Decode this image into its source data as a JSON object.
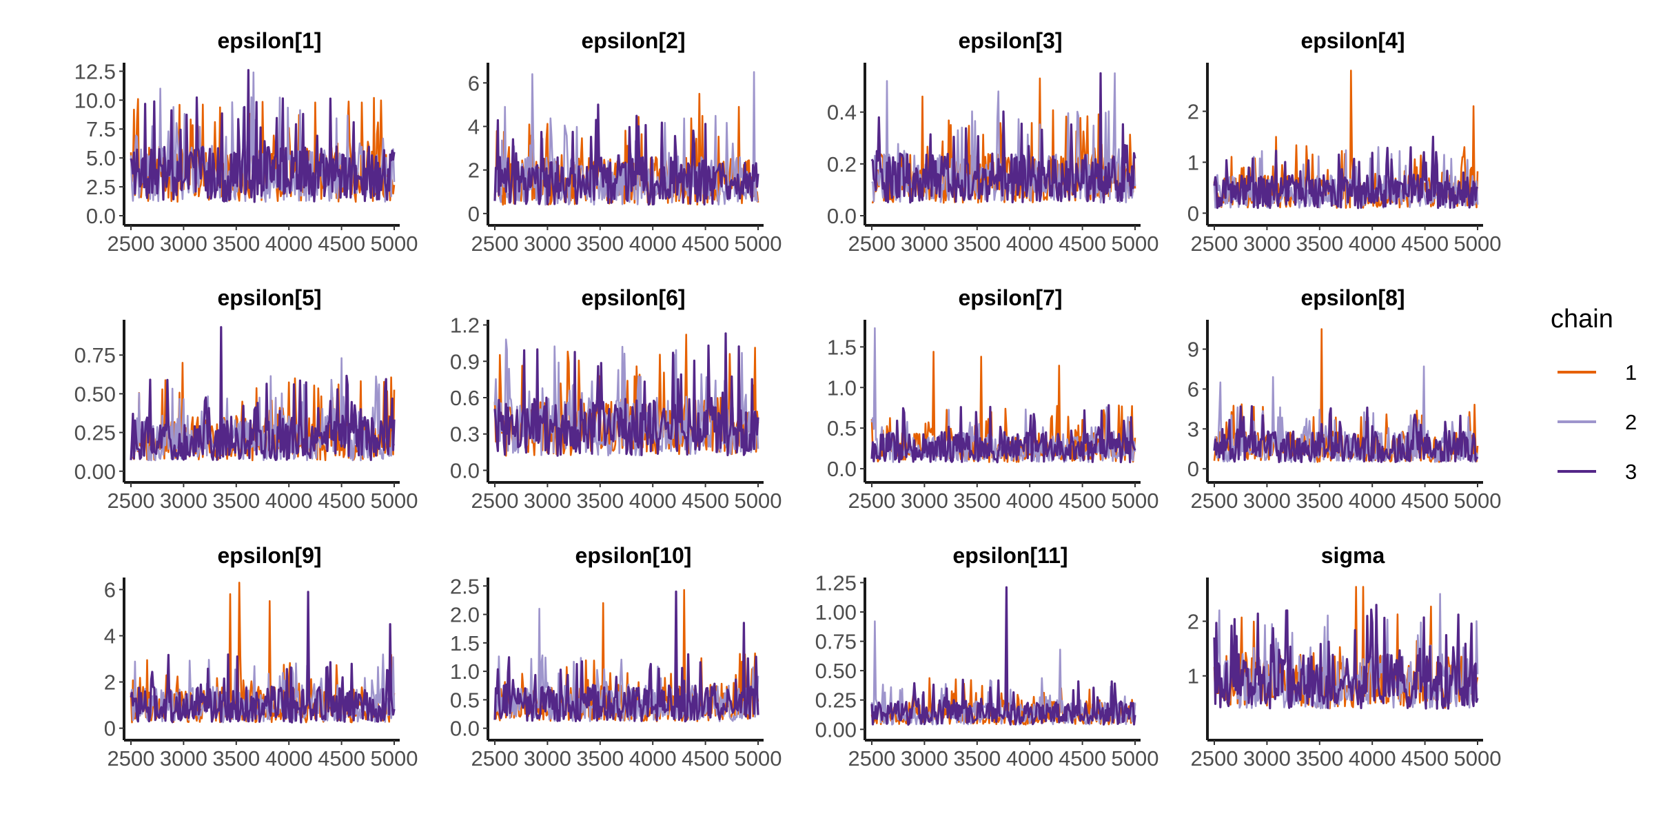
{
  "legend": {
    "title": "chain",
    "items": [
      {
        "label": "1",
        "color": "#E66101"
      },
      {
        "label": "2",
        "color": "#9E95CC"
      },
      {
        "label": "3",
        "color": "#542788"
      }
    ]
  },
  "chart_data": [
    {
      "type": "line",
      "title": "epsilon[1]",
      "xlabel": "",
      "ylabel": "",
      "xlim": [
        2500,
        5000
      ],
      "ylim": [
        0,
        13
      ],
      "x_ticks": [
        "2500",
        "3000",
        "3500",
        "4000",
        "4500",
        "5000"
      ],
      "y_ticks": [
        "0.0",
        "2.5",
        "5.0",
        "7.5",
        "10.0",
        "12.5"
      ],
      "series_summary": {
        "typical": 3.7,
        "low": 1.2,
        "high": 6.0,
        "spike_max": 12.6,
        "spikes": [
          [
            2780,
            11.0,
            "2"
          ],
          [
            2960,
            9.6,
            "1"
          ],
          [
            3620,
            12.6,
            "3"
          ],
          [
            3660,
            12.4,
            "2"
          ],
          [
            4250,
            9.8,
            "1"
          ],
          [
            4690,
            9.8,
            "1"
          ]
        ]
      }
    },
    {
      "type": "line",
      "title": "epsilon[2]",
      "xlabel": "",
      "ylabel": "",
      "xlim": [
        2500,
        5000
      ],
      "ylim": [
        -0.1,
        6.8
      ],
      "x_ticks": [
        "2500",
        "3000",
        "3500",
        "4000",
        "4500",
        "5000"
      ],
      "y_ticks": [
        "0",
        "2",
        "4",
        "6"
      ],
      "series_summary": {
        "typical": 1.5,
        "low": 0.4,
        "high": 2.6,
        "spike_max": 6.5,
        "spikes": [
          [
            2600,
            4.9,
            "2"
          ],
          [
            2860,
            6.4,
            "2"
          ],
          [
            3480,
            5.0,
            "3"
          ],
          [
            4440,
            5.5,
            "1"
          ],
          [
            4820,
            4.9,
            "1"
          ],
          [
            4960,
            6.5,
            "2"
          ]
        ]
      }
    },
    {
      "type": "line",
      "title": "epsilon[3]",
      "xlabel": "",
      "ylabel": "",
      "xlim": [
        2500,
        5000
      ],
      "ylim": [
        0,
        0.58
      ],
      "x_ticks": [
        "2500",
        "3000",
        "3500",
        "4000",
        "4500",
        "5000"
      ],
      "y_ticks": [
        "0.0",
        "0.2",
        "0.4"
      ],
      "series_summary": {
        "typical": 0.14,
        "low": 0.05,
        "high": 0.24,
        "spike_max": 0.55,
        "spikes": [
          [
            2640,
            0.52,
            "2"
          ],
          [
            2980,
            0.46,
            "1"
          ],
          [
            3700,
            0.48,
            "2"
          ],
          [
            4100,
            0.53,
            "1"
          ],
          [
            4670,
            0.55,
            "3"
          ],
          [
            4810,
            0.55,
            "2"
          ]
        ]
      }
    },
    {
      "type": "line",
      "title": "epsilon[4]",
      "xlabel": "",
      "ylabel": "",
      "xlim": [
        2500,
        5000
      ],
      "ylim": [
        -0.05,
        2.9
      ],
      "x_ticks": [
        "2500",
        "3000",
        "3500",
        "4000",
        "4500",
        "5000"
      ],
      "y_ticks": [
        "0",
        "1",
        "2"
      ],
      "series_summary": {
        "typical": 0.4,
        "low": 0.1,
        "high": 0.75,
        "spike_max": 2.8,
        "spikes": [
          [
            3090,
            1.5,
            "1"
          ],
          [
            3800,
            2.8,
            "1"
          ],
          [
            4580,
            1.5,
            "3"
          ],
          [
            4960,
            2.1,
            "1"
          ]
        ]
      }
    },
    {
      "type": "line",
      "title": "epsilon[5]",
      "xlabel": "",
      "ylabel": "",
      "xlim": [
        2500,
        5000
      ],
      "ylim": [
        -0.01,
        0.96
      ],
      "x_ticks": [
        "2500",
        "3000",
        "3500",
        "4000",
        "4500",
        "5000"
      ],
      "y_ticks": [
        "0.00",
        "0.25",
        "0.50",
        "0.75"
      ],
      "series_summary": {
        "typical": 0.2,
        "low": 0.07,
        "high": 0.36,
        "spike_max": 0.93,
        "spikes": [
          [
            2990,
            0.7,
            "1"
          ],
          [
            3360,
            0.93,
            "3"
          ],
          [
            4060,
            0.6,
            "1"
          ],
          [
            4500,
            0.73,
            "2"
          ]
        ]
      }
    },
    {
      "type": "line",
      "title": "epsilon[6]",
      "xlabel": "",
      "ylabel": "",
      "xlim": [
        2500,
        5000
      ],
      "ylim": [
        -0.02,
        1.22
      ],
      "x_ticks": [
        "2500",
        "3000",
        "3500",
        "4000",
        "4500",
        "5000"
      ],
      "y_ticks": [
        "0.0",
        "0.3",
        "0.6",
        "0.9",
        "1.2"
      ],
      "series_summary": {
        "typical": 0.35,
        "low": 0.12,
        "high": 0.6,
        "spike_max": 1.13,
        "spikes": [
          [
            2610,
            1.08,
            "2"
          ],
          [
            3190,
            0.98,
            "1"
          ],
          [
            4320,
            1.12,
            "1"
          ],
          [
            4690,
            1.13,
            "3"
          ]
        ]
      }
    },
    {
      "type": "line",
      "title": "epsilon[7]",
      "xlabel": "",
      "ylabel": "",
      "xlim": [
        2500,
        5000
      ],
      "ylim": [
        -0.05,
        1.8
      ],
      "x_ticks": [
        "2500",
        "3000",
        "3500",
        "4000",
        "4500",
        "5000"
      ],
      "y_ticks": [
        "0.0",
        "0.5",
        "1.0",
        "1.5"
      ],
      "series_summary": {
        "typical": 0.25,
        "low": 0.08,
        "high": 0.45,
        "spike_max": 1.73,
        "spikes": [
          [
            2530,
            1.73,
            "2"
          ],
          [
            3090,
            1.44,
            "1"
          ],
          [
            3540,
            1.38,
            "1"
          ],
          [
            4280,
            1.27,
            "1"
          ]
        ]
      }
    },
    {
      "type": "line",
      "title": "epsilon[8]",
      "xlabel": "",
      "ylabel": "",
      "xlim": [
        2500,
        5000
      ],
      "ylim": [
        -0.3,
        11
      ],
      "x_ticks": [
        "2500",
        "3000",
        "3500",
        "4000",
        "4500",
        "5000"
      ],
      "y_ticks": [
        "0",
        "3",
        "6",
        "9"
      ],
      "series_summary": {
        "typical": 1.5,
        "low": 0.5,
        "high": 2.8,
        "spike_max": 10.5,
        "spikes": [
          [
            2560,
            6.5,
            "2"
          ],
          [
            3060,
            6.9,
            "2"
          ],
          [
            3520,
            10.5,
            "1"
          ],
          [
            4490,
            7.7,
            "2"
          ]
        ]
      }
    },
    {
      "type": "line",
      "title": "epsilon[9]",
      "xlabel": "",
      "ylabel": "",
      "xlim": [
        2500,
        5000
      ],
      "ylim": [
        -0.1,
        6.4
      ],
      "x_ticks": [
        "2500",
        "3000",
        "3500",
        "4000",
        "4500",
        "5000"
      ],
      "y_ticks": [
        "0",
        "2",
        "4",
        "6"
      ],
      "series_summary": {
        "typical": 0.9,
        "low": 0.25,
        "high": 1.8,
        "spike_max": 6.3,
        "spikes": [
          [
            3440,
            5.8,
            "1"
          ],
          [
            3530,
            6.3,
            "1"
          ],
          [
            3820,
            5.5,
            "1"
          ],
          [
            4180,
            5.9,
            "3"
          ],
          [
            4960,
            4.5,
            "3"
          ]
        ]
      }
    },
    {
      "type": "line",
      "title": "epsilon[10]",
      "xlabel": "",
      "ylabel": "",
      "xlim": [
        2500,
        5000
      ],
      "ylim": [
        -0.04,
        2.6
      ],
      "x_ticks": [
        "2500",
        "3000",
        "3500",
        "4000",
        "4500",
        "5000"
      ],
      "y_ticks": [
        "0.0",
        "0.5",
        "1.0",
        "1.5",
        "2.0",
        "2.5"
      ],
      "series_summary": {
        "typical": 0.4,
        "low": 0.12,
        "high": 0.75,
        "spike_max": 2.43,
        "spikes": [
          [
            2920,
            2.1,
            "2"
          ],
          [
            3530,
            2.2,
            "1"
          ],
          [
            4220,
            2.4,
            "3"
          ],
          [
            4300,
            2.43,
            "1"
          ],
          [
            4870,
            1.85,
            "3"
          ]
        ]
      }
    },
    {
      "type": "line",
      "title": "epsilon[11]",
      "xlabel": "",
      "ylabel": "",
      "xlim": [
        2500,
        5000
      ],
      "ylim": [
        -0.01,
        1.27
      ],
      "x_ticks": [
        "2500",
        "3000",
        "3500",
        "4000",
        "4500",
        "5000"
      ],
      "y_ticks": [
        "0.00",
        "0.25",
        "0.50",
        "0.75",
        "1.00",
        "1.25"
      ],
      "series_summary": {
        "typical": 0.13,
        "low": 0.04,
        "high": 0.25,
        "spike_max": 1.21,
        "spikes": [
          [
            2530,
            0.92,
            "2"
          ],
          [
            3780,
            1.21,
            "3"
          ],
          [
            4290,
            0.68,
            "2"
          ]
        ]
      }
    },
    {
      "type": "line",
      "title": "sigma",
      "xlabel": "",
      "ylabel": "",
      "xlim": [
        2500,
        5000
      ],
      "ylim": [
        0,
        2.75
      ],
      "x_ticks": [
        "2500",
        "3000",
        "3500",
        "4000",
        "4500",
        "5000"
      ],
      "y_ticks": [
        "1",
        "2"
      ],
      "series_summary": {
        "typical": 0.85,
        "low": 0.4,
        "high": 1.4,
        "spike_max": 2.63,
        "spikes": [
          [
            2550,
            2.2,
            "2"
          ],
          [
            3850,
            2.63,
            "1"
          ],
          [
            3910,
            2.63,
            "1"
          ],
          [
            4040,
            2.3,
            "3"
          ],
          [
            4640,
            2.5,
            "2"
          ]
        ]
      }
    }
  ]
}
